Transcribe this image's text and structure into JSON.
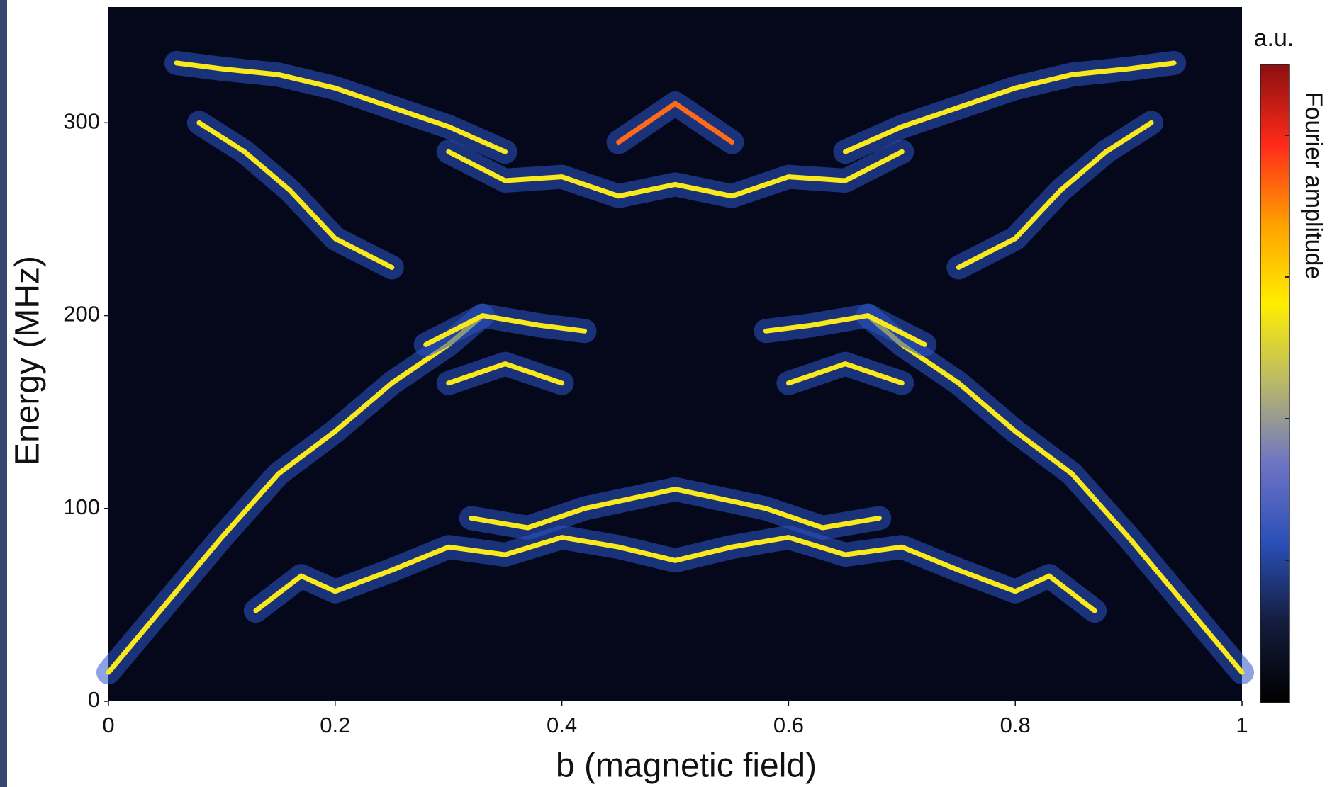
{
  "chart_data": {
    "type": "spectrum",
    "xlabel": "b (magnetic field)",
    "ylabel": "Energy (MHz)",
    "colorbar_label": "Fourier amplitude",
    "colorbar_unit": "a.u.",
    "colormap": [
      "#000000",
      "#141c3c",
      "#2a4fb8",
      "#6f74c4",
      "#b8b86a",
      "#ffee00",
      "#ffa000",
      "#ff2a1a",
      "#8a1010"
    ],
    "background": "#04081a",
    "xlim": [
      0,
      1
    ],
    "xticks": [
      0,
      0.2,
      0.4,
      0.6,
      0.8,
      1
    ],
    "ylim": [
      0,
      360
    ],
    "yticks": [
      0,
      100,
      200,
      300
    ],
    "series": [
      {
        "color": "#f8e81c",
        "x": [
          0.06,
          0.1,
          0.15,
          0.2,
          0.25,
          0.3,
          0.35
        ],
        "values": [
          331,
          328,
          325,
          318,
          308,
          298,
          285
        ]
      },
      {
        "color": "#f8e81c",
        "x": [
          0.65,
          0.7,
          0.75,
          0.8,
          0.85,
          0.9,
          0.94
        ],
        "values": [
          285,
          298,
          308,
          318,
          325,
          328,
          331
        ]
      },
      {
        "color": "#f8e81c",
        "x": [
          0,
          0.05,
          0.1,
          0.15,
          0.2,
          0.25,
          0.3,
          0.33
        ],
        "values": [
          15,
          50,
          85,
          118,
          140,
          165,
          185,
          200
        ]
      },
      {
        "color": "#f8e81c",
        "x": [
          0.67,
          0.7,
          0.75,
          0.8,
          0.85,
          0.9,
          0.95,
          1
        ],
        "values": [
          200,
          185,
          165,
          140,
          118,
          85,
          50,
          15
        ]
      },
      {
        "color": "#f8e81c",
        "x": [
          0.08,
          0.12,
          0.16,
          0.2,
          0.25
        ],
        "values": [
          300,
          285,
          265,
          240,
          225
        ]
      },
      {
        "color": "#f8e81c",
        "x": [
          0.75,
          0.8,
          0.84,
          0.88,
          0.92
        ],
        "values": [
          225,
          240,
          265,
          285,
          300
        ]
      },
      {
        "color": "#f8e81c",
        "x": [
          0.13,
          0.17,
          0.2,
          0.25,
          0.3,
          0.35,
          0.4,
          0.45,
          0.5,
          0.55,
          0.6,
          0.65,
          0.7,
          0.75,
          0.8,
          0.83,
          0.87
        ],
        "values": [
          47,
          65,
          57,
          68,
          80,
          76,
          85,
          80,
          73,
          80,
          85,
          76,
          80,
          68,
          57,
          65,
          47
        ]
      },
      {
        "color": "#f8e81c",
        "x": [
          0.32,
          0.37,
          0.42,
          0.5,
          0.58,
          0.63,
          0.68
        ],
        "values": [
          95,
          90,
          100,
          110,
          100,
          90,
          95
        ]
      },
      {
        "color": "#f8e81c",
        "x": [
          0.28,
          0.33,
          0.38,
          0.42
        ],
        "values": [
          185,
          200,
          195,
          192
        ]
      },
      {
        "color": "#f8e81c",
        "x": [
          0.58,
          0.62,
          0.67,
          0.72
        ],
        "values": [
          192,
          195,
          200,
          185
        ]
      },
      {
        "color": "#f8e81c",
        "x": [
          0.3,
          0.35,
          0.4,
          0.45,
          0.5,
          0.55,
          0.6,
          0.65,
          0.7
        ],
        "values": [
          285,
          270,
          272,
          262,
          268,
          262,
          272,
          270,
          285
        ]
      },
      {
        "color": "#ff6a1a",
        "x": [
          0.45,
          0.5,
          0.55
        ],
        "values": [
          290,
          310,
          290
        ]
      },
      {
        "color": "#f8e81c",
        "x": [
          0.3,
          0.35,
          0.4
        ],
        "values": [
          165,
          175,
          165
        ]
      },
      {
        "color": "#f8e81c",
        "x": [
          0.6,
          0.65,
          0.7
        ],
        "values": [
          165,
          175,
          165
        ]
      }
    ]
  }
}
